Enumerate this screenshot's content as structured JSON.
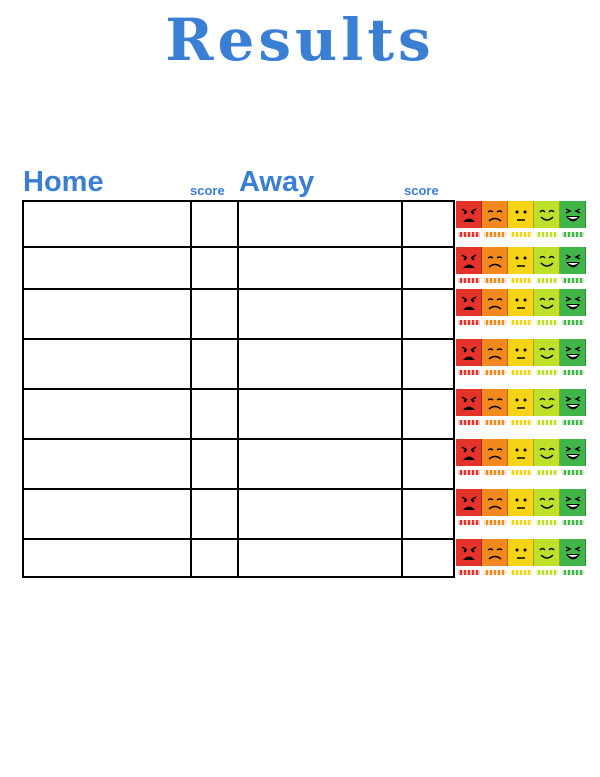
{
  "title": "Results",
  "columns": {
    "home": "Home",
    "home_score": "score",
    "away": "Away",
    "away_score": "score"
  },
  "row_count": 8,
  "rating_colors": [
    "#e5322b",
    "#f2891f",
    "#f5d316",
    "#bfe02a",
    "#3fb54a"
  ],
  "rating_icons": [
    "angry-face-icon",
    "sad-face-icon",
    "neutral-face-icon",
    "smile-face-icon",
    "laughing-face-icon"
  ]
}
